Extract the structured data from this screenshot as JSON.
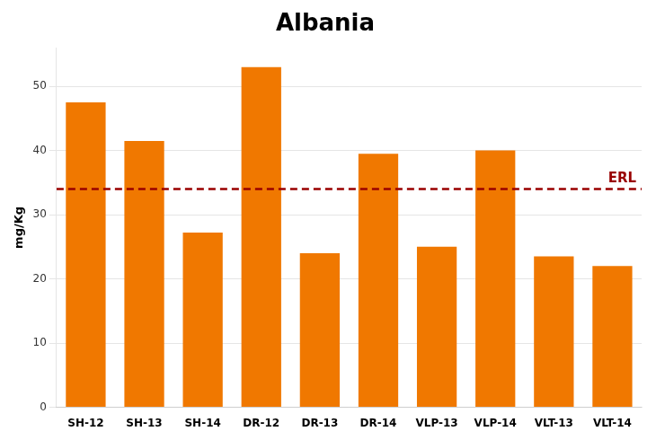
{
  "chart_data": {
    "type": "bar",
    "title": "Albania",
    "ylabel": "mg/Kg",
    "categories": [
      "SH-12",
      "SH-13",
      "SH-14",
      "DR-12",
      "DR-13",
      "DR-14",
      "VLP-13",
      "VLP-14",
      "VLT-13",
      "VLT-14"
    ],
    "values": [
      47.5,
      41.5,
      27.2,
      53.0,
      24.0,
      39.5,
      25.0,
      40.0,
      23.5,
      22.0
    ],
    "color": "#F07800",
    "ylim": [
      0,
      56
    ],
    "yticks": [
      0,
      10,
      20,
      30,
      40,
      50
    ],
    "grid": true,
    "annotations": [
      {
        "type": "hline",
        "y": 34.0,
        "label": "ERL",
        "color": "#990000",
        "line_style": "dashed"
      }
    ]
  }
}
